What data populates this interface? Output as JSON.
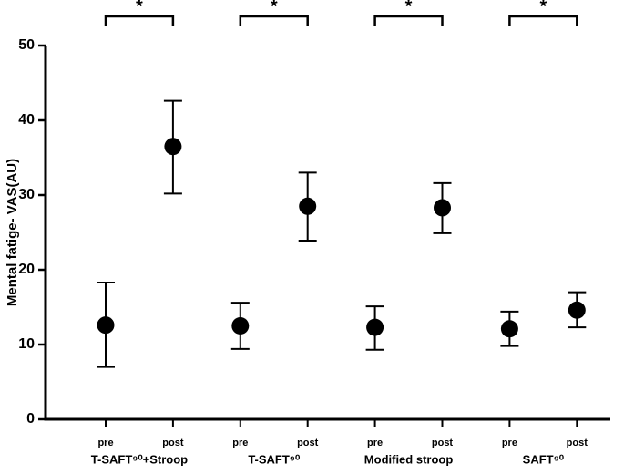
{
  "chart_data": {
    "type": "errorbar",
    "y_label": "Mental fatige- VAS(AU)",
    "categories": [
      "pre",
      "post",
      "pre",
      "post",
      "pre",
      "post",
      "pre",
      "post"
    ],
    "groups": [
      "T-SAFT⁹⁰+Stroop",
      "T-SAFT⁹⁰",
      "Modified stroop",
      "SAFT⁹⁰"
    ],
    "significance": [
      "*",
      "*",
      "*",
      "*"
    ],
    "series": [
      {
        "color": "#000000",
        "values": [
          12.6,
          36.5,
          12.5,
          28.5,
          12.3,
          28.3,
          12.1,
          14.6
        ],
        "lower": [
          7.0,
          30.2,
          9.4,
          23.9,
          9.3,
          24.9,
          9.8,
          12.3
        ],
        "upper": [
          18.3,
          42.6,
          15.6,
          33.0,
          15.1,
          31.6,
          14.4,
          17.0
        ]
      }
    ],
    "ylim": [
      0,
      50
    ],
    "yticks": [
      0,
      10,
      20,
      30,
      40,
      50
    ],
    "grid": false
  }
}
